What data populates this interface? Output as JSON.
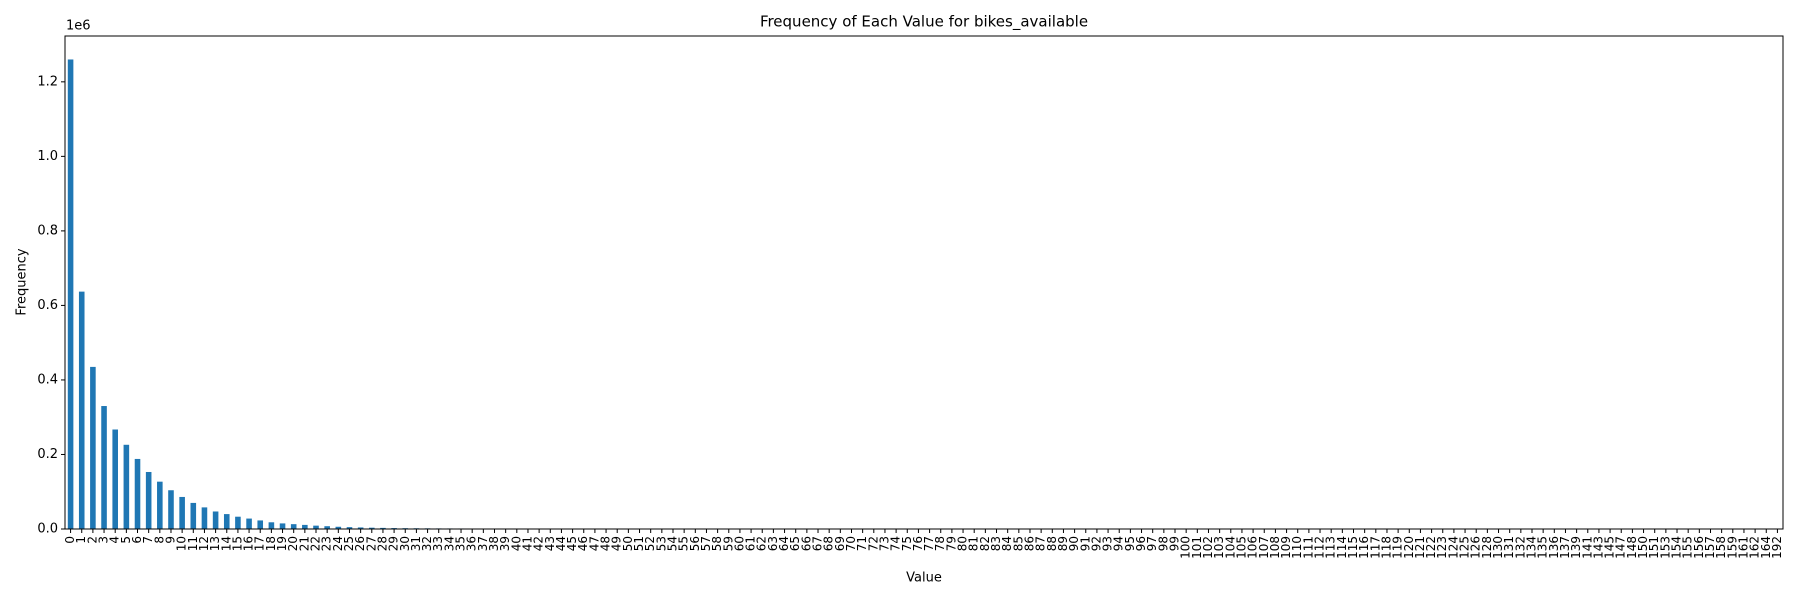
{
  "chart_data": {
    "type": "bar",
    "title": "Frequency of Each Value for bikes_available",
    "x_label": "Value",
    "y_label": "Frequency",
    "y_offset_label": "1e6",
    "color": "#1f77b4",
    "categories": [
      0,
      1,
      2,
      3,
      4,
      5,
      6,
      7,
      8,
      9,
      10,
      11,
      12,
      13,
      14,
      15,
      16,
      17,
      18,
      19,
      20,
      21,
      22,
      23,
      24,
      25,
      26,
      27,
      28,
      29,
      30,
      31,
      32,
      33,
      34,
      35,
      36,
      37,
      38,
      39,
      40,
      41,
      42,
      43,
      44,
      45,
      46,
      47,
      48,
      49,
      50,
      51,
      52,
      53,
      54,
      55,
      56,
      57,
      58,
      59,
      60,
      61,
      62,
      63,
      64,
      65,
      66,
      67,
      68,
      69,
      70,
      71,
      72,
      73,
      74,
      75,
      76,
      77,
      78,
      79,
      80,
      81,
      82,
      83,
      84,
      85,
      86,
      87,
      88,
      89,
      90,
      91,
      92,
      93,
      94,
      95,
      96,
      97,
      98,
      99,
      100,
      101,
      102,
      103,
      104,
      105,
      106,
      107,
      108,
      109,
      110,
      111,
      112,
      113,
      114,
      115,
      116,
      117,
      118,
      119,
      120,
      121,
      122,
      123,
      124,
      125,
      126,
      128,
      130,
      131,
      132,
      134,
      135,
      136,
      137,
      139,
      141,
      143,
      145,
      147,
      148,
      150,
      151,
      153,
      154,
      155,
      156,
      157,
      158,
      159,
      161,
      162,
      164,
      192
    ],
    "values": [
      1260000,
      637000,
      435000,
      330000,
      267000,
      226000,
      188000,
      153000,
      127000,
      104000,
      86000,
      70000,
      58000,
      47000,
      40000,
      33000,
      28000,
      23000,
      18000,
      15000,
      13000,
      11000,
      9000,
      7500,
      6000,
      5000,
      4200,
      3500,
      3000,
      2500,
      2200,
      2000,
      1800,
      1600,
      1500,
      1400,
      900,
      800,
      700,
      600,
      550,
      500,
      450,
      400,
      350,
      320,
      290,
      260,
      240,
      220,
      200,
      180,
      165,
      150,
      140,
      130,
      120,
      110,
      100,
      95,
      90,
      85,
      80,
      75,
      70,
      65,
      60,
      58,
      55,
      52,
      50,
      48,
      46,
      44,
      42,
      40,
      38,
      36,
      34,
      32,
      30,
      29,
      28,
      27,
      26,
      25,
      24,
      23,
      22,
      21,
      20,
      19,
      18,
      17,
      16,
      15,
      14,
      13,
      12,
      11,
      10,
      10,
      9,
      9,
      8,
      8,
      7,
      7,
      6,
      6,
      5,
      5,
      5,
      4,
      4,
      4,
      3,
      3,
      3,
      3,
      2,
      2,
      2,
      2,
      2,
      2,
      1,
      2,
      1,
      1,
      2,
      1,
      1,
      1,
      1,
      1,
      1,
      1,
      1,
      1,
      1,
      1,
      1,
      1,
      1,
      1,
      1,
      1,
      1,
      1,
      1,
      1,
      1,
      1
    ],
    "ylim": [
      0,
      1323000
    ],
    "yticks": [
      {
        "value": 0,
        "label": "0.0"
      },
      {
        "value": 200000,
        "label": "0.2"
      },
      {
        "value": 400000,
        "label": "0.4"
      },
      {
        "value": 600000,
        "label": "0.6"
      },
      {
        "value": 800000,
        "label": "0.8"
      },
      {
        "value": 1000000,
        "label": "1.0"
      },
      {
        "value": 1200000,
        "label": "1.2"
      }
    ],
    "grid": false
  }
}
